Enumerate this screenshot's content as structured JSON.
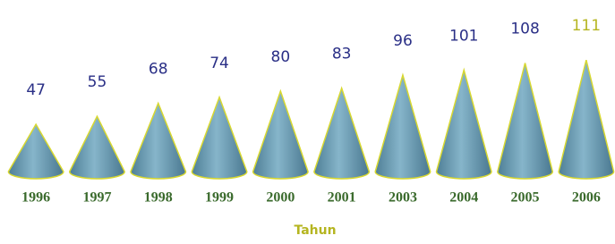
{
  "chart_data": {
    "type": "cone",
    "categories": [
      "1996",
      "1997",
      "1998",
      "1999",
      "2000",
      "2001",
      "2003",
      "2004",
      "2005",
      "2006"
    ],
    "values": [
      47,
      55,
      68,
      74,
      80,
      83,
      96,
      101,
      108,
      111
    ],
    "color": "#6f9fb6",
    "edge_color": "#d8d830",
    "value_label_colors": [
      "#2a2f86",
      "#2a2f86",
      "#2a2f86",
      "#2a2f86",
      "#2a2f86",
      "#2a2f86",
      "#2a2f86",
      "#2a2f86",
      "#2a2f86",
      "#b5b520"
    ],
    "x_label": "Tahun",
    "ylim": [
      0,
      120
    ]
  }
}
